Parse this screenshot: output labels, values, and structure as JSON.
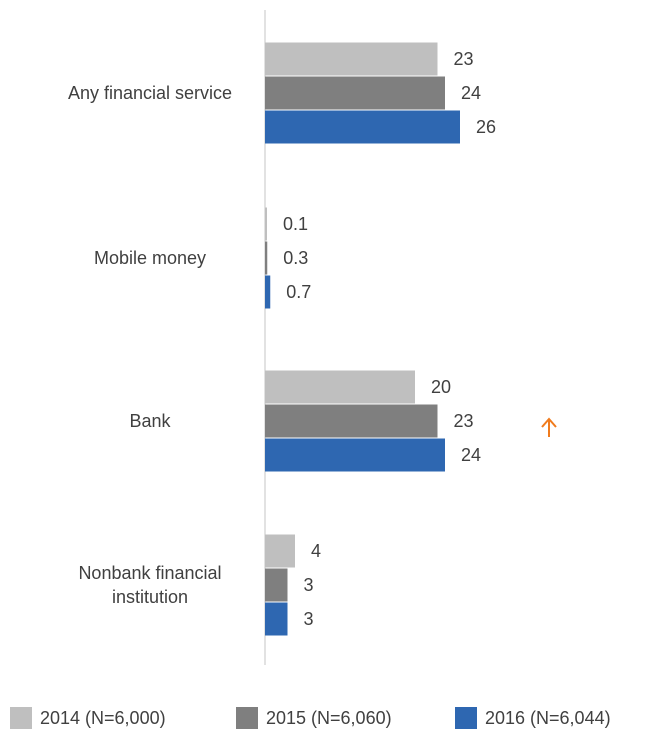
{
  "chart_data": {
    "type": "hbar",
    "categories": [
      "Any financial service",
      "Mobile money",
      "Bank",
      "Nonbank financial institution"
    ],
    "series": [
      {
        "name": "2014 (N=6,000)",
        "color": "#bfbfbf",
        "values": [
          23,
          0.1,
          20,
          4
        ]
      },
      {
        "name": "2015 (N=6,060)",
        "color": "#7f7f7f",
        "values": [
          24,
          0.3,
          23,
          3
        ]
      },
      {
        "name": "2016 (N=6,044)",
        "color": "#2e67b1",
        "values": [
          26,
          0.7,
          24,
          3
        ]
      }
    ],
    "legend": "bottom"
  }
}
